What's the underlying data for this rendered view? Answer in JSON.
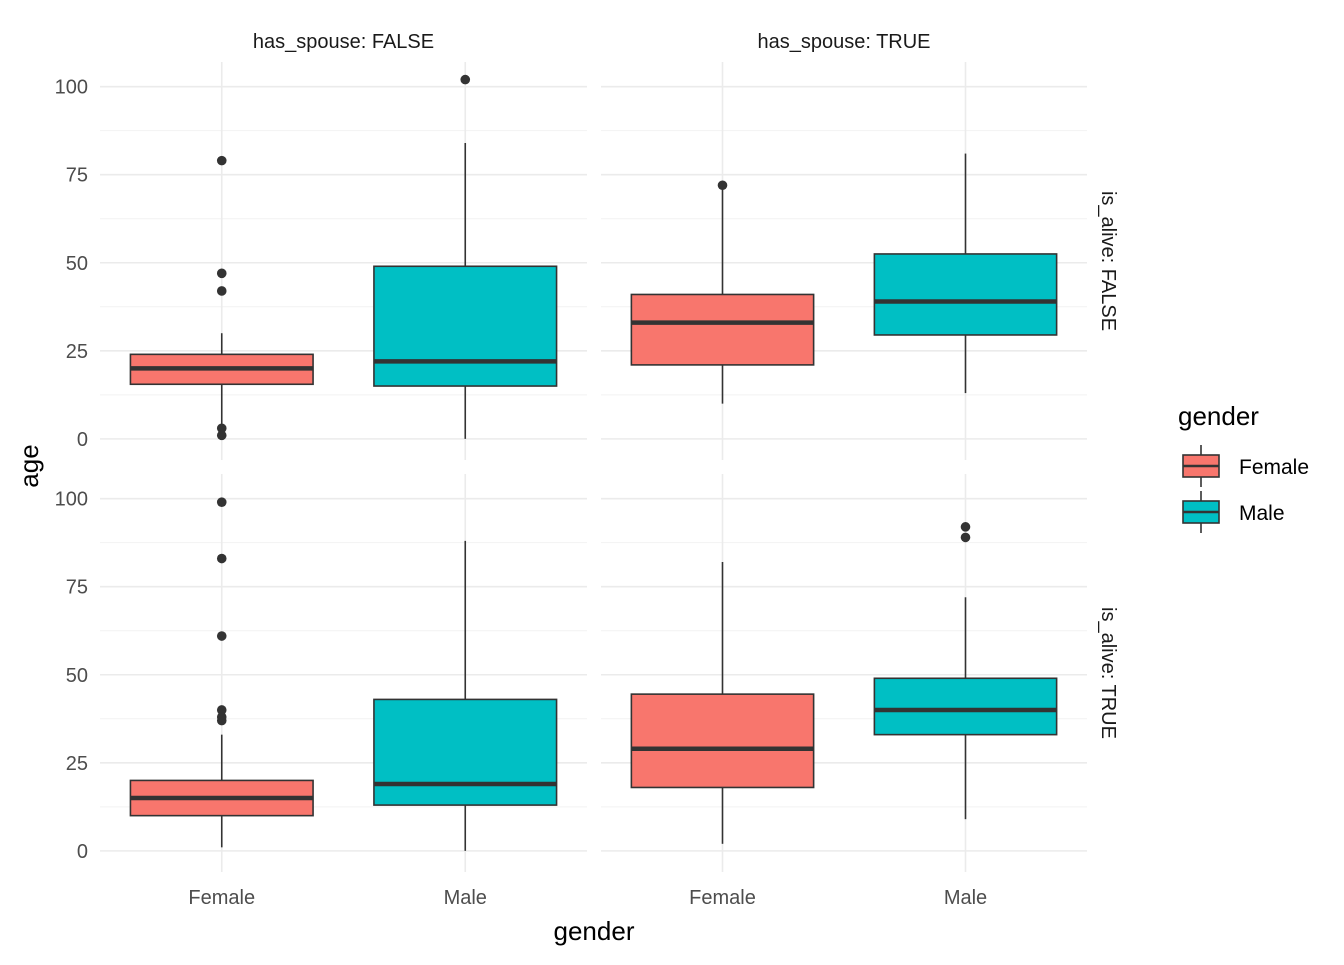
{
  "chart_data": {
    "type": "boxplot",
    "title": "",
    "xlabel": "gender",
    "ylabel": "age",
    "categories": [
      "Female",
      "Male"
    ],
    "ylim": [
      -6,
      107
    ],
    "yticks": [
      0,
      25,
      50,
      75,
      100
    ],
    "grid": true,
    "legend": {
      "title": "gender",
      "position": "right",
      "entries": [
        {
          "label": "Female",
          "color": "#F8766D"
        },
        {
          "label": "Male",
          "color": "#00BFC4"
        }
      ]
    },
    "facet_col_labels": [
      "has_spouse: FALSE",
      "has_spouse: TRUE"
    ],
    "facet_row_labels": [
      "is_alive: FALSE",
      "is_alive: TRUE"
    ],
    "panels": [
      {
        "col": 0,
        "row": 0,
        "boxes": [
          {
            "category": "Female",
            "q1": 15.5,
            "median": 20,
            "q3": 24,
            "whisker_low": 4,
            "whisker_high": 30,
            "outliers": [
              1,
              3,
              42,
              47,
              79
            ]
          },
          {
            "category": "Male",
            "q1": 15,
            "median": 22,
            "q3": 49,
            "whisker_low": 0,
            "whisker_high": 84,
            "outliers": [
              102
            ]
          }
        ]
      },
      {
        "col": 1,
        "row": 0,
        "boxes": [
          {
            "category": "Female",
            "q1": 21,
            "median": 33,
            "q3": 41,
            "whisker_low": 10,
            "whisker_high": 71,
            "outliers": [
              72
            ]
          },
          {
            "category": "Male",
            "q1": 29.5,
            "median": 39,
            "q3": 52.5,
            "whisker_low": 13,
            "whisker_high": 81,
            "outliers": []
          }
        ]
      },
      {
        "col": 0,
        "row": 1,
        "boxes": [
          {
            "category": "Female",
            "q1": 10,
            "median": 15,
            "q3": 20,
            "whisker_low": 1,
            "whisker_high": 33,
            "outliers": [
              37,
              38,
              40,
              61,
              83,
              99
            ]
          },
          {
            "category": "Male",
            "q1": 13,
            "median": 19,
            "q3": 43,
            "whisker_low": 0,
            "whisker_high": 88,
            "outliers": []
          }
        ]
      },
      {
        "col": 1,
        "row": 1,
        "boxes": [
          {
            "category": "Female",
            "q1": 18,
            "median": 29,
            "q3": 44.5,
            "whisker_low": 2,
            "whisker_high": 82,
            "outliers": []
          },
          {
            "category": "Male",
            "q1": 33,
            "median": 40,
            "q3": 49,
            "whisker_low": 9,
            "whisker_high": 72,
            "outliers": [
              89,
              92
            ]
          }
        ]
      }
    ]
  }
}
